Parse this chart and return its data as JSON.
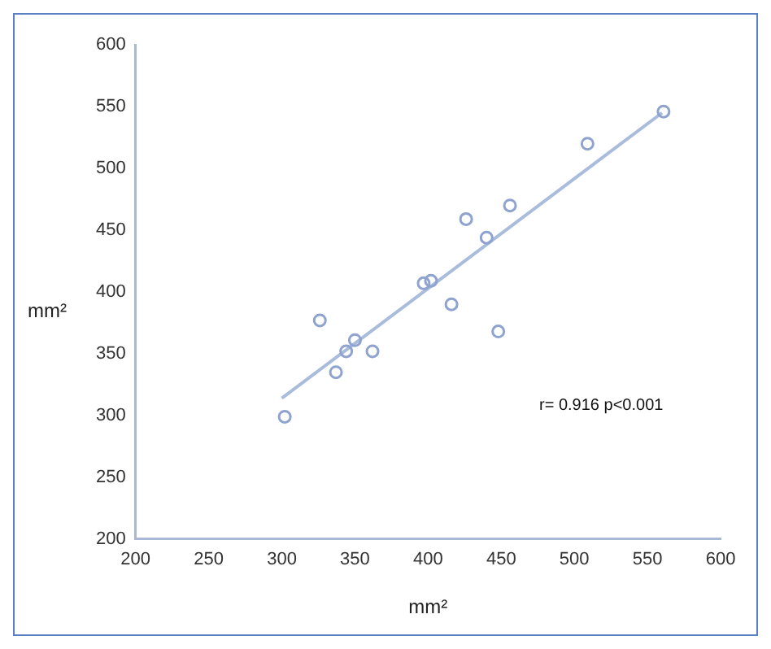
{
  "chart_data": {
    "type": "scatter",
    "xlabel": "mm²",
    "ylabel": "mm²",
    "annotations": [
      "r= 0.916 p<0.001"
    ],
    "xlim": [
      200,
      600
    ],
    "xticks": [
      200,
      250,
      300,
      350,
      400,
      450,
      500,
      550,
      600
    ],
    "ylim": [
      200,
      600
    ],
    "yticks": [
      200,
      250,
      300,
      350,
      400,
      450,
      500,
      550,
      600
    ],
    "grid": false,
    "legend": false,
    "series": [
      {
        "marker": "circle",
        "color": "#8fa3d0",
        "x": [
          302,
          326,
          337,
          344,
          350,
          362,
          397,
          402,
          416,
          426,
          440,
          448,
          456,
          509,
          561
        ],
        "values": [
          299,
          377,
          335,
          352,
          361,
          352,
          407,
          409,
          390,
          459,
          444,
          368,
          470,
          520,
          546
        ]
      },
      {
        "type": "line",
        "marker": "none",
        "color": "#a9bcdc",
        "x": [
          300,
          560
        ],
        "values": [
          314,
          545
        ]
      }
    ]
  }
}
